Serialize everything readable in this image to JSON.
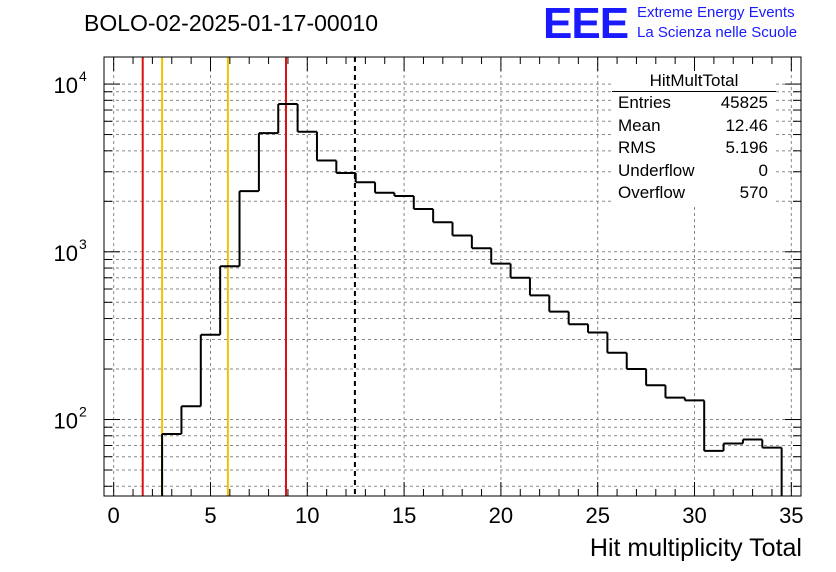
{
  "title": "BOLO-02-2025-01-17-00010",
  "logo": {
    "mark": "EEE",
    "line1": "Extreme Energy Events",
    "line2": "La Scienza nelle Scuole",
    "color": "#1a1aff"
  },
  "stats_box": {
    "name": "HitMultTotal",
    "rows": [
      {
        "label": "Entries",
        "value": "45825"
      },
      {
        "label": "Mean",
        "value": "12.46"
      },
      {
        "label": "RMS",
        "value": "5.196"
      },
      {
        "label": "Underflow",
        "value": "0"
      },
      {
        "label": "Overflow",
        "value": "570"
      }
    ]
  },
  "chart_data": {
    "type": "histogram",
    "xlabel": "Hit multiplicity Total",
    "ylabel": "",
    "xlim": [
      -0.5,
      35.5
    ],
    "ylim": [
      35,
      14500
    ],
    "y_scale": "log",
    "grid": true,
    "x_ticks": [
      0,
      5,
      10,
      15,
      20,
      25,
      30,
      35
    ],
    "y_ticks": [
      {
        "value": 100,
        "label": "10",
        "exp": "2"
      },
      {
        "value": 1000,
        "label": "10",
        "exp": "3"
      },
      {
        "value": 10000,
        "label": "10",
        "exp": "4"
      }
    ],
    "bin_width": 1,
    "bin_centers": [
      0,
      1,
      2,
      3,
      4,
      5,
      6,
      7,
      8,
      9,
      10,
      11,
      12,
      13,
      14,
      15,
      16,
      17,
      18,
      19,
      20,
      21,
      22,
      23,
      24,
      25,
      26,
      27,
      28,
      29,
      30,
      31,
      32,
      33,
      34,
      35
    ],
    "counts": [
      0,
      0,
      0,
      82,
      120,
      320,
      820,
      2300,
      5100,
      7600,
      5200,
      3500,
      2950,
      2600,
      2250,
      2150,
      1800,
      1500,
      1250,
      1050,
      850,
      700,
      550,
      440,
      370,
      330,
      250,
      200,
      160,
      135,
      130,
      65,
      72,
      76,
      68,
      0
    ],
    "vertical_lines": [
      {
        "x": 1.5,
        "color": "#dd1111",
        "style": "solid"
      },
      {
        "x": 2.5,
        "color": "#f2c200",
        "style": "solid"
      },
      {
        "x": 5.9,
        "color": "#f2c200",
        "style": "solid"
      },
      {
        "x": 8.9,
        "color": "#dd1111",
        "style": "solid"
      },
      {
        "x": 12.46,
        "color": "#000000",
        "style": "dashed"
      }
    ],
    "line_color": "#000000"
  }
}
